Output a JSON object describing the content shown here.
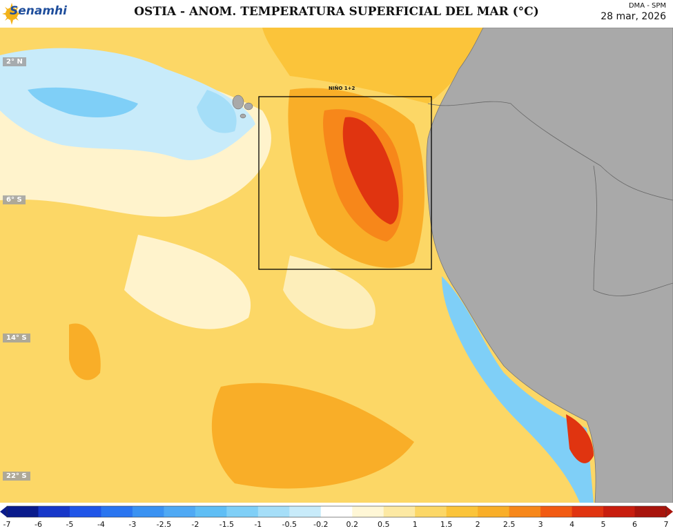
{
  "header": {
    "logo_text": "Senamhi",
    "title": "OSTIA - ANOM. TEMPERATURA SUPERFICIAL DEL MAR (°C)",
    "department": "DMA - SPM",
    "date": "28 mar, 2026"
  },
  "map": {
    "latitude_labels": [
      "2° N",
      "6° S",
      "14° S",
      "22° S"
    ],
    "region_box_label": "NIÑO 1+2",
    "land_color": "#a9a9a9"
  },
  "colorbar": {
    "ticks": [
      "-7",
      "-6",
      "-5",
      "-4",
      "-3",
      "-2.5",
      "-2",
      "-1.5",
      "-1",
      "-0.5",
      "-0.2",
      "0.2",
      "0.5",
      "1",
      "1.5",
      "2",
      "2.5",
      "3",
      "4",
      "5",
      "6",
      "7"
    ],
    "colors": [
      "#0a1b8c",
      "#1737c9",
      "#1f55e8",
      "#2a75f0",
      "#3a92f2",
      "#4fa9f4",
      "#5fbef5",
      "#7fcff7",
      "#a5def8",
      "#c8ebfa",
      "#ffffff",
      "#fff7d6",
      "#fde9a3",
      "#fcd766",
      "#fbc43a",
      "#f9ae28",
      "#f7871a",
      "#f25a12",
      "#e03410",
      "#c81d0e",
      "#a8140c"
    ]
  }
}
